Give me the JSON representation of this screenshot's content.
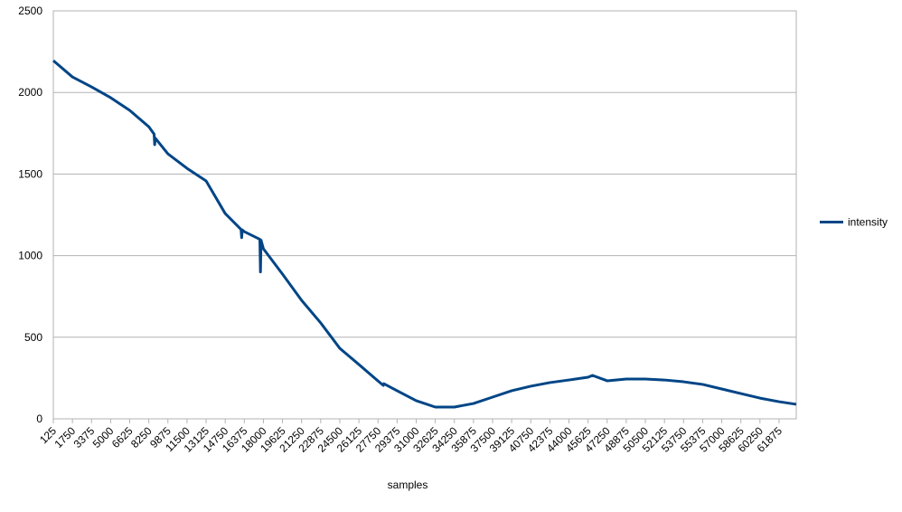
{
  "chart_data": {
    "type": "line",
    "x_label": "samples",
    "x": [
      125,
      1750,
      3375,
      5000,
      6625,
      8250,
      8700,
      8750,
      8800,
      9875,
      11500,
      13125,
      14750,
      16100,
      16150,
      16200,
      16375,
      17700,
      17750,
      17800,
      18000,
      19625,
      21250,
      22875,
      24500,
      26125,
      27750,
      28200,
      28250,
      29375,
      31000,
      32625,
      34250,
      35875,
      37500,
      39125,
      40750,
      42375,
      44000,
      45625,
      46000,
      47250,
      48875,
      50500,
      52125,
      53750,
      55375,
      57000,
      58625,
      60250,
      61875,
      63340
    ],
    "series": [
      {
        "name": "intensity",
        "color": "#004586",
        "values": [
          2195,
          2095,
          2034,
          1968,
          1890,
          1790,
          1745,
          1680,
          1720,
          1624,
          1535,
          1458,
          1258,
          1160,
          1110,
          1158,
          1147,
          1100,
          900,
          1095,
          1042,
          887,
          726,
          588,
          432,
          333,
          232,
          205,
          215,
          172,
          111,
          72,
          72,
          94,
          133,
          172,
          200,
          222,
          238,
          255,
          266,
          233,
          244,
          244,
          238,
          227,
          211,
          183,
          155,
          127,
          105,
          89
        ]
      }
    ],
    "xlim": [
      125,
      63340
    ],
    "xticks": [
      125,
      1750,
      3375,
      5000,
      6625,
      8250,
      9875,
      11500,
      13125,
      14750,
      16375,
      18000,
      19625,
      21250,
      22875,
      24500,
      26125,
      27750,
      29375,
      31000,
      32625,
      34250,
      35875,
      37500,
      39125,
      40750,
      42375,
      44000,
      45625,
      47250,
      48875,
      50500,
      52125,
      53750,
      55375,
      57000,
      58625,
      60250,
      61875
    ],
    "ylim": [
      0,
      2500
    ],
    "yticks": [
      0,
      500,
      1000,
      1500,
      2000,
      2500
    ],
    "grid": true,
    "legend": "right"
  }
}
